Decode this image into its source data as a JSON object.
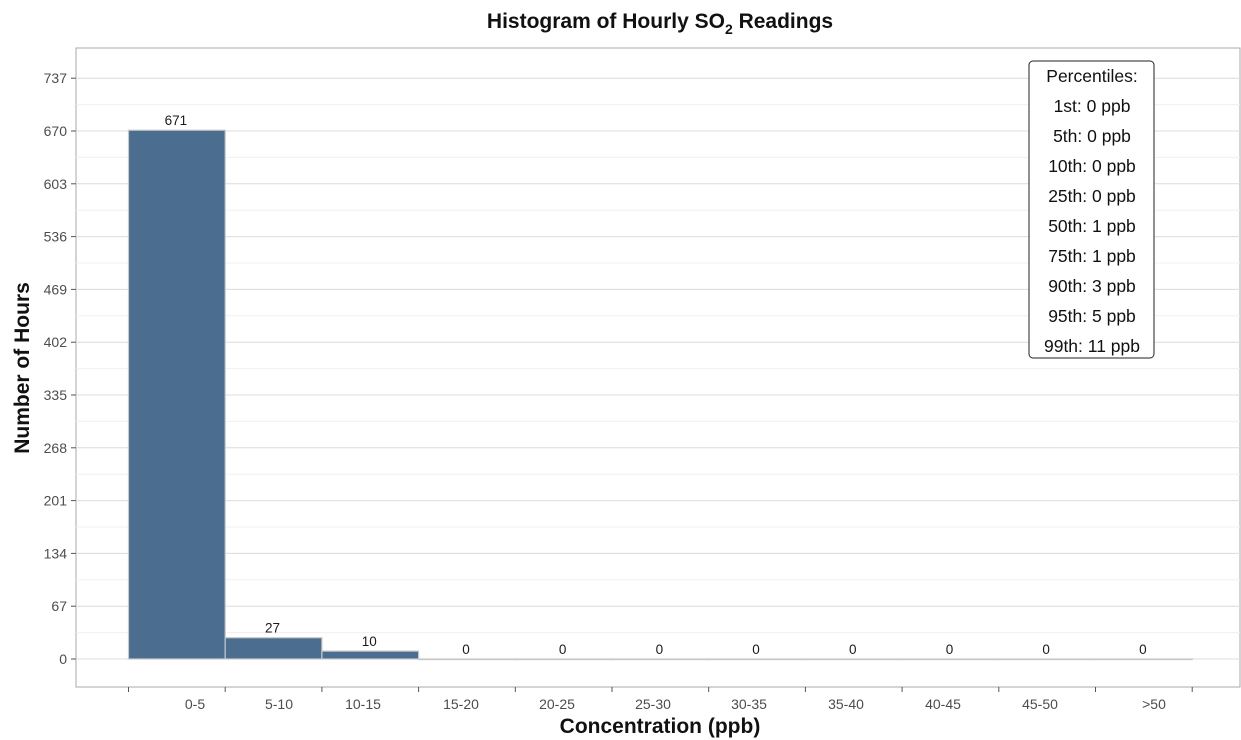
{
  "chart_data": {
    "type": "bar",
    "title_main": "Histogram of Hourly SO",
    "title_sub": "2",
    "title_rest": " Readings",
    "xlabel": "Concentration (ppb)",
    "ylabel": "Number of Hours",
    "categories": [
      "0-5",
      "5-10",
      "10-15",
      "15-20",
      "20-25",
      "25-30",
      "30-35",
      "35-40",
      "40-45",
      "45-50",
      ">50"
    ],
    "values": [
      671,
      27,
      10,
      0,
      0,
      0,
      0,
      0,
      0,
      0,
      0
    ],
    "data_labels": [
      "671",
      "27",
      "10",
      "0",
      "0",
      "0",
      "0",
      "0",
      "0",
      "0",
      "0"
    ],
    "yticks": [
      0,
      67,
      134,
      201,
      268,
      335,
      402,
      469,
      536,
      603,
      670,
      737
    ],
    "ylim": [
      -37,
      755
    ],
    "grid": true,
    "bar_color": "#4a6d90",
    "bar_edge_color": "#c8c8c8",
    "legend_box": {
      "title": "Percentiles:",
      "items": [
        "1st: 0 ppb",
        "5th: 0 ppb",
        "10th: 0 ppb",
        "25th: 0 ppb",
        "50th: 1 ppb",
        "75th: 1 ppb",
        "90th: 3 ppb",
        "95th: 5 ppb",
        "99th: 11 ppb"
      ],
      "placement": "top-right"
    }
  }
}
